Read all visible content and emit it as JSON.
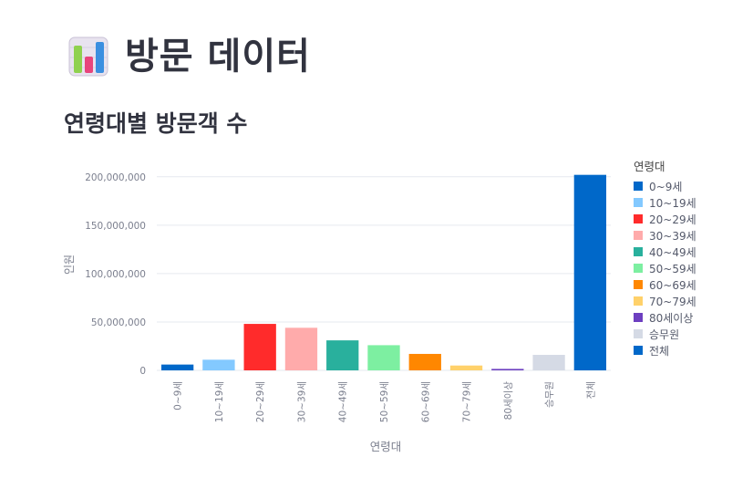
{
  "page": {
    "title": "방문 데이터",
    "title_icon": "bar-chart-icon",
    "subheader": "연령대별 방문객 수"
  },
  "chart_data": {
    "type": "bar",
    "xlabel": "연령대",
    "ylabel": "인원",
    "ylim": [
      0,
      213000000
    ],
    "yticks": [
      0,
      50000000,
      100000000,
      150000000,
      200000000
    ],
    "ytick_labels": [
      "0",
      "50,000,000",
      "100,000,000",
      "150,000,000",
      "200,000,000"
    ],
    "grid": true,
    "legend_title": "연령대",
    "legend_position": "right",
    "categories": [
      "0~9세",
      "10~19세",
      "20~29세",
      "30~39세",
      "40~49세",
      "50~59세",
      "60~69세",
      "70~79세",
      "80세이상",
      "승무원",
      "전체"
    ],
    "values": [
      6000000,
      11000000,
      48000000,
      44000000,
      31000000,
      26000000,
      17000000,
      5000000,
      1500000,
      16000000,
      202000000
    ],
    "colors": [
      "#0068c9",
      "#83c9ff",
      "#ff2b2b",
      "#ffabab",
      "#29b09d",
      "#7defa1",
      "#ff8700",
      "#ffd16a",
      "#6d3fc0",
      "#d5dae5",
      "#0068c9"
    ]
  }
}
